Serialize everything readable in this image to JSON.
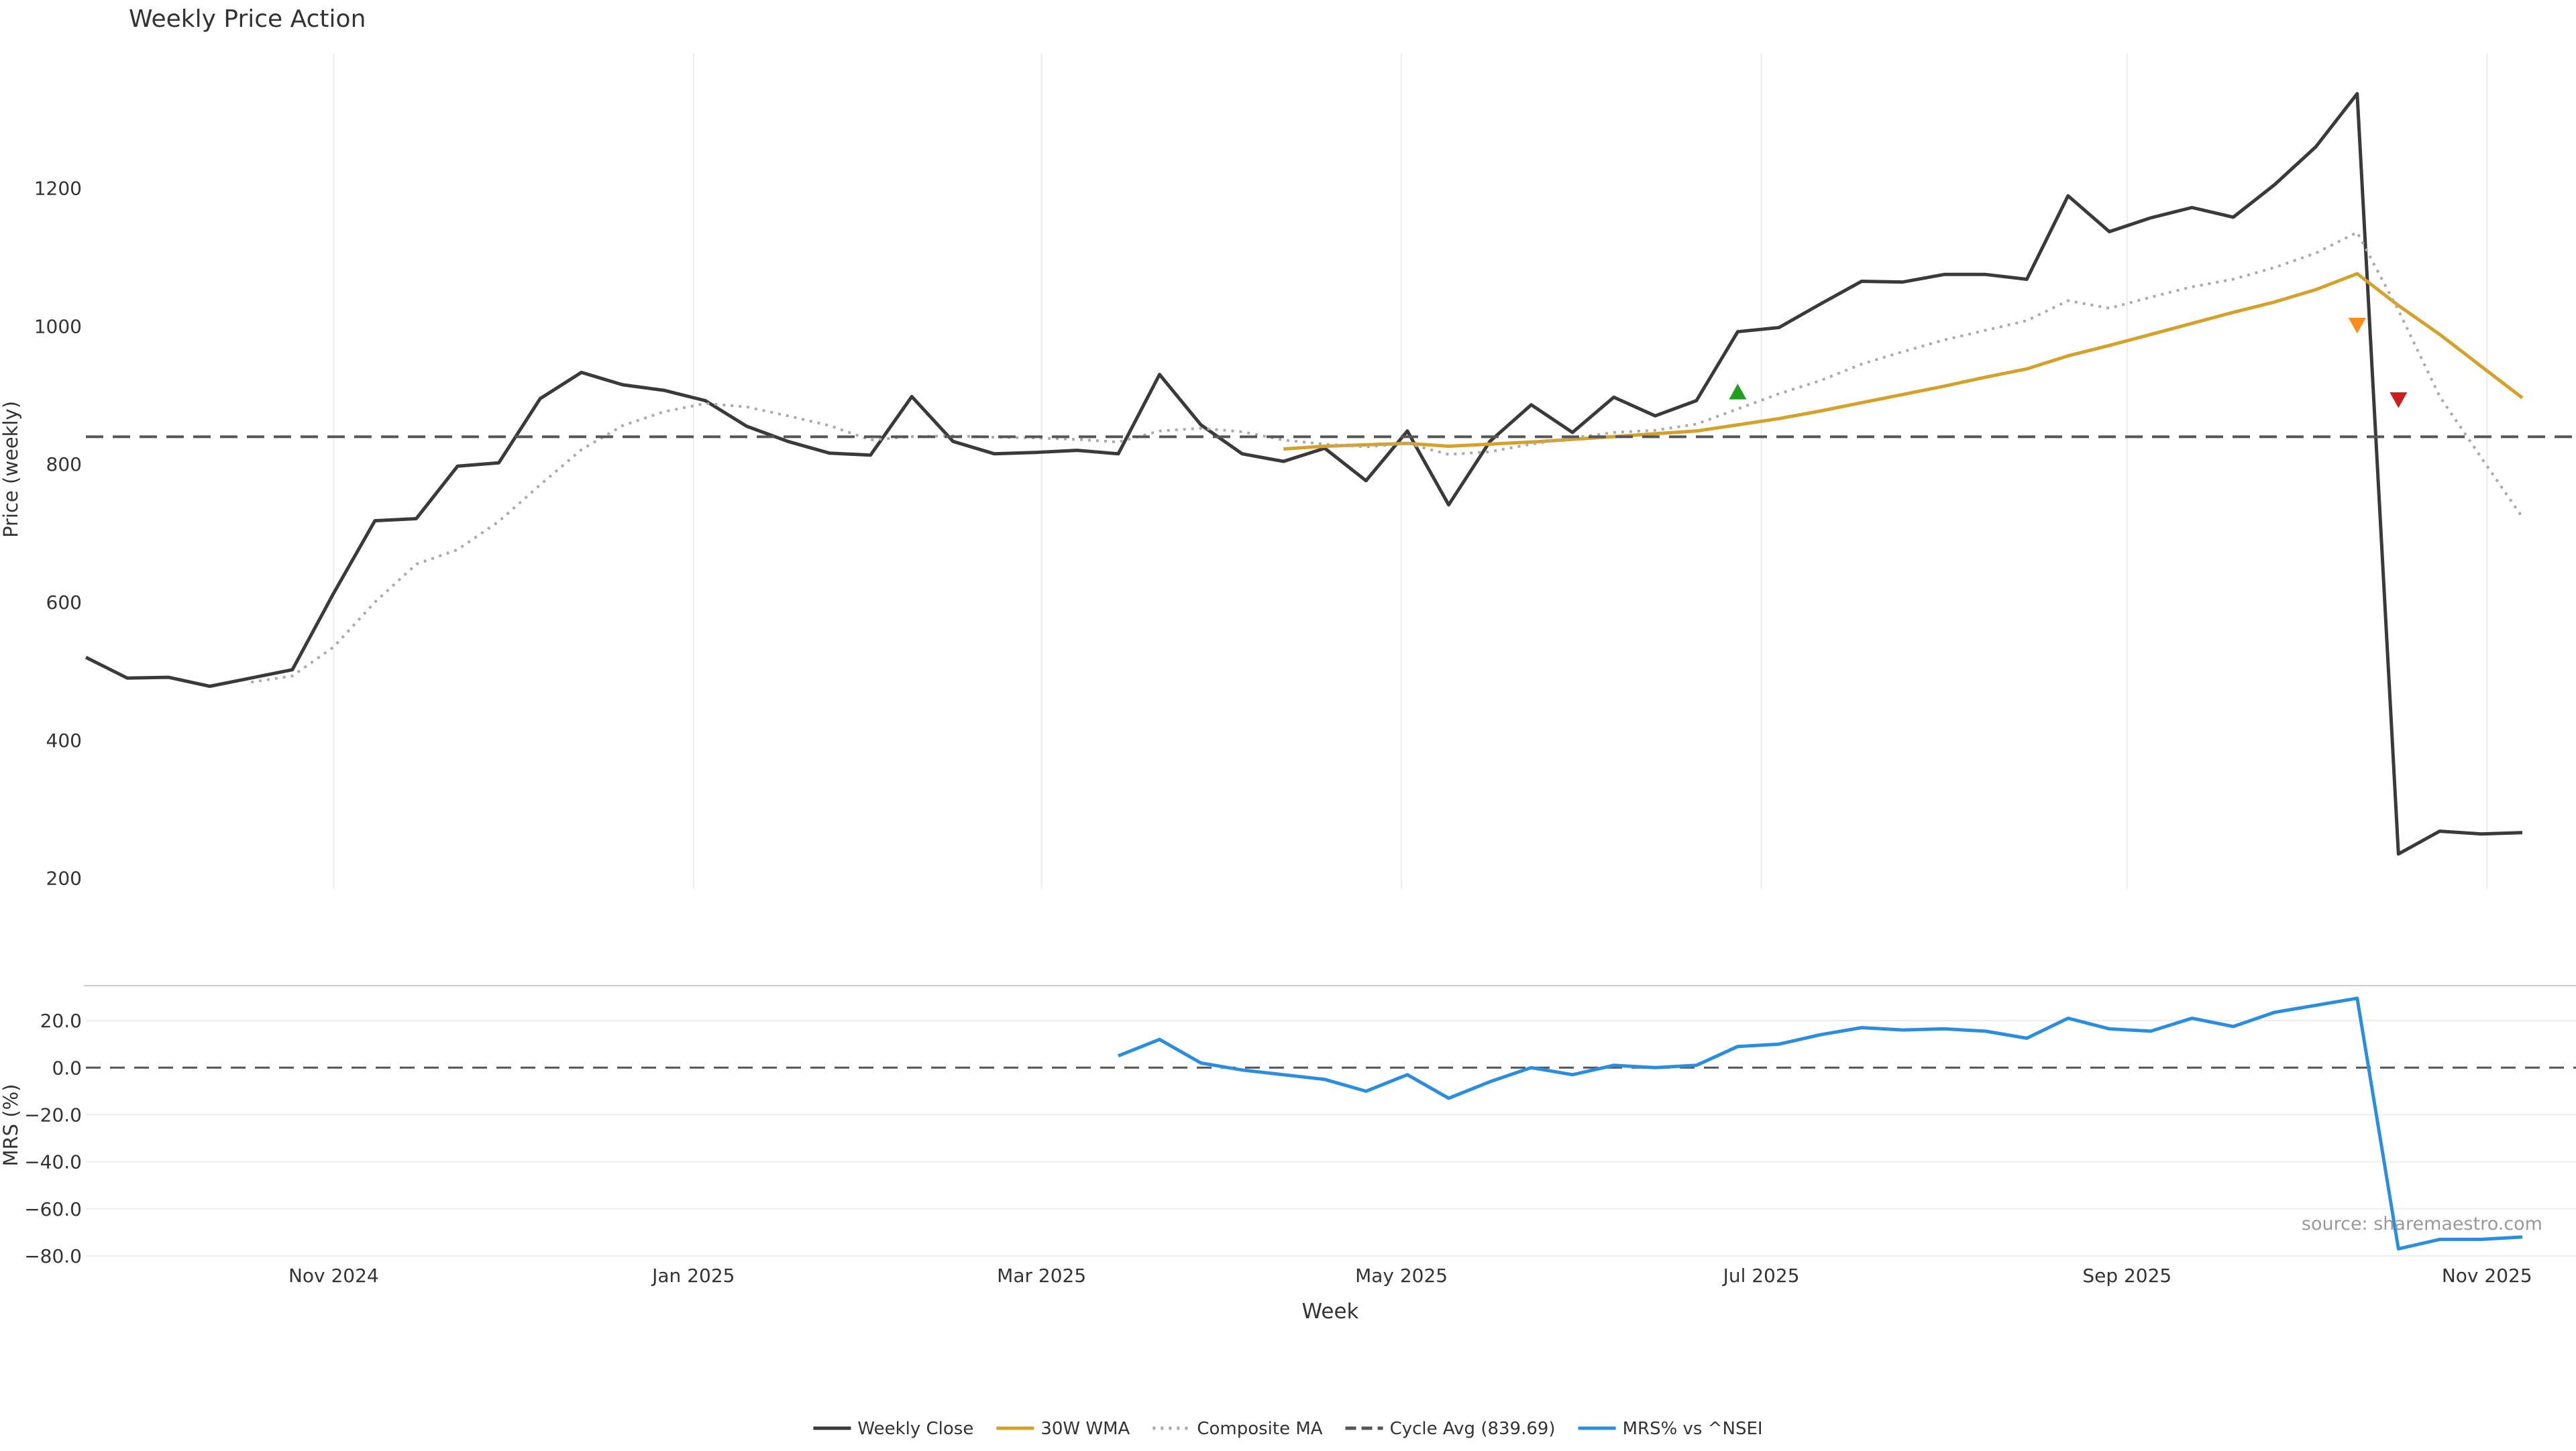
{
  "chart_data": {
    "title": "Weekly Price Action",
    "source_note": "source: sharemaestro.com",
    "xlabel": "Week",
    "x_dates": [
      "2024-09-20",
      "2024-09-27",
      "2024-10-04",
      "2024-10-11",
      "2024-10-18",
      "2024-10-25",
      "2024-11-01",
      "2024-11-08",
      "2024-11-15",
      "2024-11-22",
      "2024-11-29",
      "2024-12-06",
      "2024-12-13",
      "2024-12-20",
      "2024-12-27",
      "2025-01-03",
      "2025-01-10",
      "2025-01-17",
      "2025-01-24",
      "2025-01-31",
      "2025-02-07",
      "2025-02-14",
      "2025-02-21",
      "2025-02-28",
      "2025-03-07",
      "2025-03-14",
      "2025-03-21",
      "2025-03-28",
      "2025-04-04",
      "2025-04-11",
      "2025-04-18",
      "2025-04-25",
      "2025-05-02",
      "2025-05-09",
      "2025-05-16",
      "2025-05-23",
      "2025-05-30",
      "2025-06-06",
      "2025-06-13",
      "2025-06-20",
      "2025-06-27",
      "2025-07-04",
      "2025-07-11",
      "2025-07-18",
      "2025-07-25",
      "2025-08-01",
      "2025-08-08",
      "2025-08-15",
      "2025-08-22",
      "2025-08-29",
      "2025-09-05",
      "2025-09-12",
      "2025-09-19",
      "2025-09-26",
      "2025-10-03",
      "2025-10-10",
      "2025-10-17",
      "2025-10-24",
      "2025-10-31",
      "2025-11-07"
    ],
    "x_ticks": [
      {
        "date": "2024-11-01",
        "label": "Nov 2024"
      },
      {
        "date": "2025-01-01",
        "label": "Jan 2025"
      },
      {
        "date": "2025-03-01",
        "label": "Mar 2025"
      },
      {
        "date": "2025-05-01",
        "label": "May 2025"
      },
      {
        "date": "2025-07-01",
        "label": "Jul 2025"
      },
      {
        "date": "2025-09-01",
        "label": "Sep 2025"
      },
      {
        "date": "2025-11-01",
        "label": "Nov 2025"
      }
    ],
    "price_panel": {
      "type": "line",
      "ylabel": "Price (weekly)",
      "ylim": [
        185,
        1395
      ],
      "yticks": [
        200,
        400,
        600,
        800,
        1000,
        1200
      ],
      "grid": "x",
      "series": [
        {
          "name": "Weekly Close",
          "color": "#3a3a3a",
          "style": "solid",
          "values": [
            520,
            490,
            491,
            478,
            490,
            502,
            613,
            718,
            721,
            797,
            802,
            895,
            933,
            915,
            907,
            892,
            855,
            833,
            816,
            813,
            898,
            833,
            815,
            817,
            820,
            815,
            930,
            857,
            815,
            804,
            823,
            776,
            848,
            741,
            833,
            886,
            846,
            897,
            870,
            892,
            992,
            998,
            1032,
            1065,
            1064,
            1075,
            1075,
            1068,
            1189,
            1137,
            1157,
            1172,
            1158,
            1205,
            1260,
            1337,
            235,
            268,
            264,
            266
          ]
        },
        {
          "name": "30W WMA",
          "color": "#d4a12a",
          "style": "solid",
          "values": [
            null,
            null,
            null,
            null,
            null,
            null,
            null,
            null,
            null,
            null,
            null,
            null,
            null,
            null,
            null,
            null,
            null,
            null,
            null,
            null,
            null,
            null,
            null,
            null,
            null,
            null,
            null,
            null,
            null,
            822,
            826,
            828,
            830,
            826,
            829,
            832,
            836,
            840,
            844,
            848,
            857,
            866,
            877,
            889,
            901,
            913,
            926,
            938,
            957,
            972,
            988,
            1004,
            1020,
            1035,
            1053,
            1076,
            1030,
            988,
            942,
            896
          ]
        },
        {
          "name": "Composite MA",
          "color": "#aaaaaa",
          "style": "dotted",
          "values": [
            null,
            null,
            null,
            null,
            484,
            493,
            535,
            600,
            655,
            676,
            717,
            770,
            821,
            856,
            876,
            888,
            883,
            870,
            856,
            835,
            840,
            841,
            839,
            838,
            836,
            832,
            848,
            852,
            847,
            835,
            829,
            825,
            830,
            814,
            818,
            829,
            838,
            846,
            849,
            858,
            880,
            902,
            921,
            945,
            963,
            980,
            994,
            1008,
            1037,
            1026,
            1042,
            1057,
            1068,
            1085,
            1106,
            1136,
            1023,
            898,
            810,
            723
          ]
        },
        {
          "name": "Cycle Avg (839.69)",
          "color": "#555555",
          "style": "dashed",
          "constant": 839.69
        }
      ],
      "markers": [
        {
          "date": "2025-06-27",
          "value": 904,
          "shape": "triangle-up",
          "color": "#1f9e1f"
        },
        {
          "date": "2025-10-10",
          "value": 1002,
          "shape": "triangle-down",
          "color": "#ff8c1a"
        },
        {
          "date": "2025-10-17",
          "value": 894,
          "shape": "triangle-down",
          "color": "#cc1f1f"
        }
      ]
    },
    "mrs_panel": {
      "type": "line",
      "ylabel": "MRS (%)",
      "ylim": [
        -82,
        32
      ],
      "yticks": [
        -80,
        -60,
        -40,
        -20,
        0,
        20
      ],
      "ytick_labels": [
        "−80.0",
        "−60.0",
        "−40.0",
        "−20.0",
        "0.0",
        "20.0"
      ],
      "zero_line": 0,
      "series": [
        {
          "name": "MRS% vs ^NSEI",
          "color": "#2b8de0",
          "style": "solid",
          "values": [
            null,
            null,
            null,
            null,
            null,
            null,
            null,
            null,
            null,
            null,
            null,
            null,
            null,
            null,
            null,
            null,
            null,
            null,
            null,
            null,
            null,
            null,
            null,
            null,
            null,
            5,
            12,
            2,
            -1,
            -3,
            -5,
            -10,
            -3,
            -13,
            -6,
            0,
            -3,
            1,
            0,
            1,
            9,
            10,
            14,
            17,
            16,
            16.5,
            15.5,
            12.5,
            21,
            16.5,
            15.5,
            21,
            17.5,
            23.5,
            26.5,
            29.5,
            -77,
            -73,
            -73,
            -72
          ]
        }
      ]
    },
    "legend": {
      "placement": "bottom-center",
      "items": [
        {
          "label": "Weekly Close",
          "color": "#3a3a3a",
          "style": "solid"
        },
        {
          "label": "30W WMA",
          "color": "#d4a12a",
          "style": "solid"
        },
        {
          "label": "Composite MA",
          "color": "#aaaaaa",
          "style": "dotted"
        },
        {
          "label": "Cycle Avg (839.69)",
          "color": "#555555",
          "style": "dashed"
        },
        {
          "label": "MRS% vs ^NSEI",
          "color": "#2b8de0",
          "style": "solid"
        }
      ]
    }
  }
}
